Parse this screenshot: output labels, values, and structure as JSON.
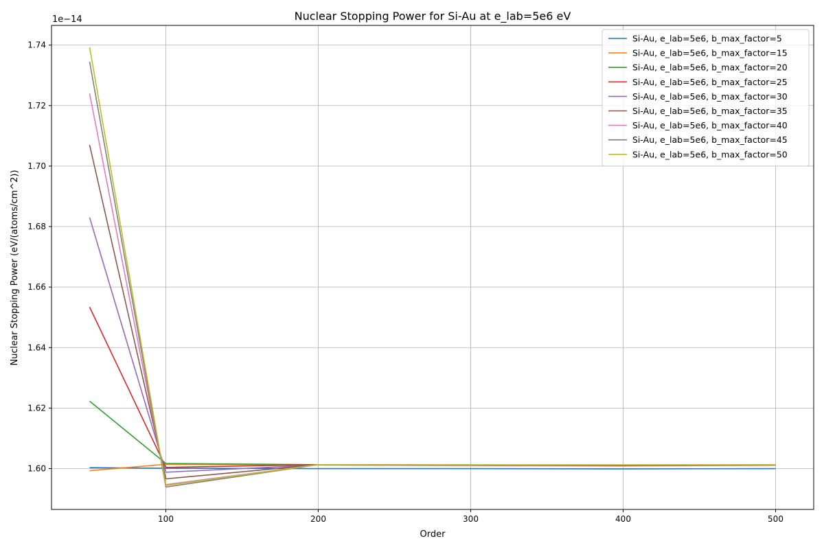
{
  "chart_data": {
    "type": "line",
    "title": "Nuclear Stopping Power for Si-Au at e_lab=5e6 eV",
    "xlabel": "Order",
    "ylabel": "Nuclear Stopping Power (eV/(atoms/cm^2))",
    "y_offset_label": "1e−14",
    "y_scale_exponent": -14,
    "xlim": [
      25,
      525
    ],
    "ylim": [
      1.5865,
      1.7465
    ],
    "x_ticks": [
      100,
      200,
      300,
      400,
      500
    ],
    "x_tick_labels": [
      "100",
      "200",
      "300",
      "400",
      "500"
    ],
    "y_ticks": [
      1.6,
      1.62,
      1.64,
      1.66,
      1.68,
      1.7,
      1.72,
      1.74
    ],
    "y_tick_labels": [
      "1.60",
      "1.62",
      "1.64",
      "1.66",
      "1.68",
      "1.70",
      "1.72",
      "1.74"
    ],
    "grid": true,
    "legend_position": "top-right",
    "x": [
      50,
      100,
      200,
      300,
      400,
      500
    ],
    "series": [
      {
        "name": "Si-Au, e_lab=5e6, b_max_factor=5",
        "color": "#1f77b4",
        "values": [
          1.6003,
          1.6001,
          1.6,
          1.6,
          1.5999,
          1.6
        ]
      },
      {
        "name": "Si-Au, e_lab=5e6, b_max_factor=15",
        "color": "#ff7f0e",
        "values": [
          1.5993,
          1.6014,
          1.6012,
          1.601,
          1.6009,
          1.6011
        ]
      },
      {
        "name": "Si-Au, e_lab=5e6, b_max_factor=20",
        "color": "#2ca02c",
        "values": [
          1.6223,
          1.6017,
          1.6013,
          1.6011,
          1.6011,
          1.6012
        ]
      },
      {
        "name": "Si-Au, e_lab=5e6, b_max_factor=25",
        "color": "#d62728",
        "values": [
          1.6534,
          1.6004,
          1.6013,
          1.6011,
          1.601,
          1.6012
        ]
      },
      {
        "name": "Si-Au, e_lab=5e6, b_max_factor=30",
        "color": "#9467bd",
        "values": [
          1.683,
          1.5988,
          1.6012,
          1.6011,
          1.6011,
          1.6012
        ]
      },
      {
        "name": "Si-Au, e_lab=5e6, b_max_factor=35",
        "color": "#8c564b",
        "values": [
          1.707,
          1.5966,
          1.6013,
          1.6012,
          1.6011,
          1.6012
        ]
      },
      {
        "name": "Si-Au, e_lab=5e6, b_max_factor=40",
        "color": "#e377c2",
        "values": [
          1.724,
          1.5947,
          1.6013,
          1.6012,
          1.6012,
          1.6012
        ]
      },
      {
        "name": "Si-Au, e_lab=5e6, b_max_factor=45",
        "color": "#7f7f7f",
        "values": [
          1.7345,
          1.5939,
          1.6013,
          1.6012,
          1.6012,
          1.6012
        ]
      },
      {
        "name": "Si-Au, e_lab=5e6, b_max_factor=50",
        "color": "#bcbd22",
        "values": [
          1.7393,
          1.5944,
          1.6013,
          1.6012,
          1.6012,
          1.6013
        ]
      }
    ]
  }
}
